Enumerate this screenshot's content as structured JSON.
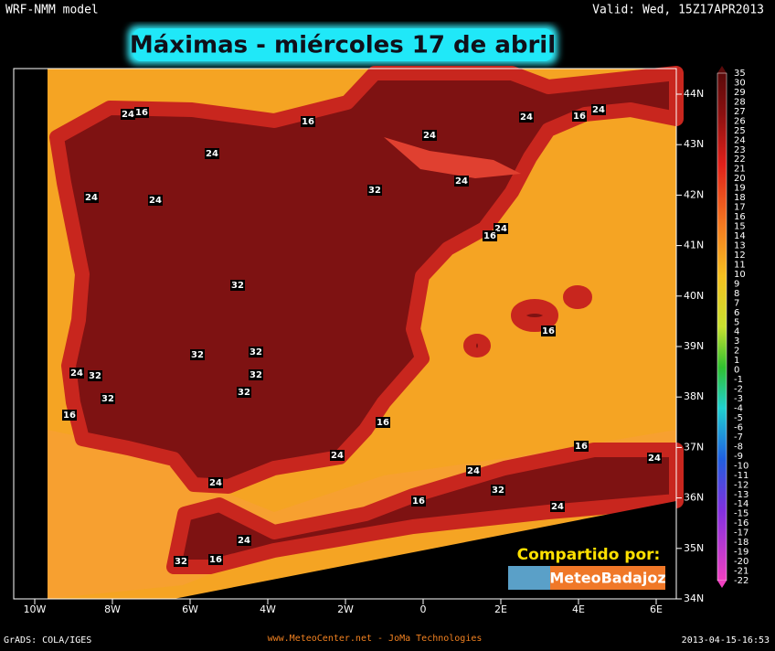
{
  "header": {
    "model": "WRF-NMM model",
    "valid": "Valid: Wed, 15Z17APR2013",
    "title": "Máximas - miércoles 17 de abril"
  },
  "map": {
    "lat_labels": [
      "44N",
      "43N",
      "42N",
      "41N",
      "40N",
      "39N",
      "38N",
      "37N",
      "36N",
      "35N",
      "34N"
    ],
    "lon_labels": [
      "10W",
      "8W",
      "6W",
      "4W",
      "2W",
      "0",
      "2E",
      "4E",
      "6E"
    ],
    "contour_labels": [
      "16",
      "24",
      "16",
      "24",
      "24",
      "16",
      "24",
      "24",
      "24",
      "24",
      "32",
      "24",
      "24",
      "16",
      "32",
      "32",
      "32",
      "32",
      "24",
      "32",
      "32",
      "32",
      "16",
      "16",
      "16",
      "24",
      "16",
      "24",
      "24",
      "24",
      "32",
      "16",
      "24",
      "24",
      "32",
      "16"
    ]
  },
  "colorbar": {
    "labels": [
      "35",
      "30",
      "29",
      "28",
      "27",
      "26",
      "25",
      "24",
      "23",
      "22",
      "21",
      "20",
      "19",
      "18",
      "17",
      "16",
      "15",
      "14",
      "13",
      "12",
      "11",
      "10",
      "9",
      "8",
      "7",
      "6",
      "5",
      "4",
      "3",
      "2",
      "1",
      "0",
      "-1",
      "-2",
      "-3",
      "-4",
      "-5",
      "-6",
      "-7",
      "-8",
      "-9",
      "-10",
      "-11",
      "-12",
      "-13",
      "-14",
      "-15",
      "-16",
      "-17",
      "-18",
      "-19",
      "-20",
      "-21",
      "-22"
    ]
  },
  "share": {
    "caption": "Compartido por:",
    "brand": "MeteoBadajoz"
  },
  "footer": {
    "left": "GrADS: COLA/IGES",
    "center": "www.MeteoCenter.net  -  JoMa Technologies",
    "right": "2013-04-15-16:53"
  }
}
